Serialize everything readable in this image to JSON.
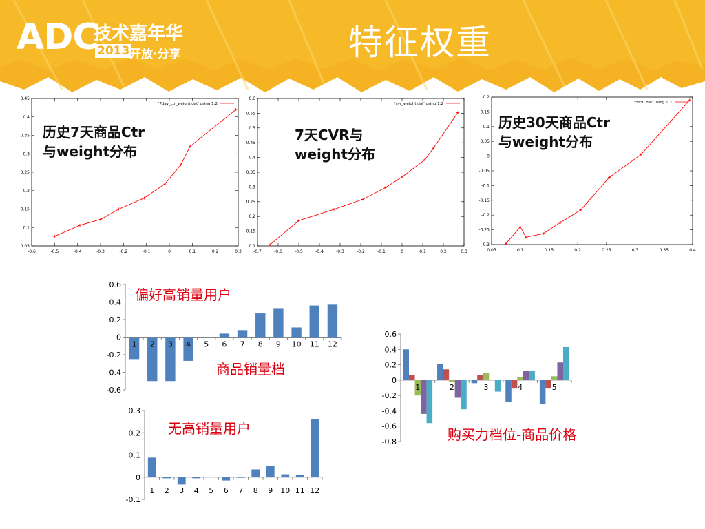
{
  "header": {
    "logo_main": "ADC",
    "logo_sub_top": "技术嘉年华",
    "logo_year": "2013",
    "logo_sub_bottom": "开放·分享",
    "title": "特征权重",
    "colors": {
      "banner": "#f5b324",
      "banner_light": "#f9cb45",
      "title_text": "#ffffff"
    }
  },
  "captions": {
    "plot1": [
      "历史7天商品Ctr",
      "与weight分布"
    ],
    "plot2": [
      "7天CVR与",
      "weight分布"
    ],
    "plot3": [
      "历史30天商品Ctr",
      "与weight分布"
    ],
    "bar1_title": "偏好高销量用户",
    "bar1_axis": "商品销量档",
    "bar2_title": "无高销量用户",
    "bar3_title": "购买力档位-商品价格"
  },
  "chart_data": [
    {
      "type": "line",
      "legend": "'7day_ctr_weight.dat' using 1:2",
      "legend_position": "top-right",
      "xlim": [
        -0.6,
        0.3
      ],
      "ylim": [
        0.05,
        0.45
      ],
      "xticks": [
        "-0.6",
        "-0.5",
        "-0.4",
        "-0.3",
        "-0.2",
        "-0.1",
        "0",
        "0.1",
        "0.2",
        "0.3"
      ],
      "yticks": [
        "0.05",
        "0.1",
        "0.15",
        "0.2",
        "0.25",
        "0.3",
        "0.35",
        "0.4",
        "0.45"
      ],
      "x": [
        -0.5,
        -0.39,
        -0.3,
        -0.22,
        -0.11,
        -0.02,
        0.05,
        0.09,
        0.29
      ],
      "y": [
        0.076,
        0.106,
        0.122,
        0.15,
        0.18,
        0.218,
        0.27,
        0.32,
        0.42
      ],
      "color": "#ff0000"
    },
    {
      "type": "line",
      "legend": "'cvr_weight.dat' using 1:2",
      "legend_position": "top-right",
      "xlim": [
        -0.7,
        0.3
      ],
      "ylim": [
        0.1,
        0.6
      ],
      "xticks": [
        "-0.7",
        "-0.6",
        "-0.5",
        "-0.4",
        "-0.3",
        "-0.2",
        "-0.1",
        "0",
        "0.1",
        "0.2",
        "0.3"
      ],
      "yticks": [
        "0.1",
        "0.15",
        "0.2",
        "0.25",
        "0.3",
        "0.35",
        "0.4",
        "0.45",
        "0.5",
        "0.55",
        "0.6"
      ],
      "x": [
        -0.64,
        -0.5,
        -0.33,
        -0.19,
        -0.08,
        0.0,
        0.11,
        0.15,
        0.27
      ],
      "y": [
        0.104,
        0.186,
        0.224,
        0.258,
        0.298,
        0.334,
        0.392,
        0.43,
        0.552
      ],
      "color": "#ff0000"
    },
    {
      "type": "line",
      "legend": "'ctr30.dat' using 1:2",
      "legend_position": "top-right",
      "xlim": [
        0.05,
        0.4
      ],
      "ylim": [
        -0.3,
        0.2
      ],
      "xticks": [
        "0.05",
        "0.1",
        "0.15",
        "0.2",
        "0.25",
        "0.3",
        "0.35",
        "0.4"
      ],
      "yticks": [
        "-0.3",
        "-0.25",
        "-0.2",
        "-0.15",
        "-0.1",
        "-0.05",
        "0",
        "0.05",
        "0.1",
        "0.15",
        "0.2"
      ],
      "x": [
        0.075,
        0.1,
        0.11,
        0.14,
        0.17,
        0.205,
        0.255,
        0.31,
        0.395
      ],
      "y": [
        -0.297,
        -0.24,
        -0.275,
        -0.263,
        -0.225,
        -0.183,
        -0.072,
        0.005,
        0.19
      ],
      "color": "#ff0000"
    },
    {
      "type": "bar",
      "categories": [
        "1",
        "2",
        "3",
        "4",
        "5",
        "6",
        "7",
        "8",
        "9",
        "10",
        "11",
        "12"
      ],
      "values": [
        -0.25,
        -0.5,
        -0.5,
        -0.27,
        0.0,
        0.04,
        0.08,
        0.27,
        0.33,
        0.11,
        0.36,
        0.37
      ],
      "ylim": [
        -0.6,
        0.6
      ],
      "yticks": [
        "-0.6",
        "-0.4",
        "-0.2",
        "0",
        "0.2",
        "0.4",
        "0.6"
      ],
      "color": "#4f81bd"
    },
    {
      "type": "bar",
      "categories": [
        "1",
        "2",
        "3",
        "4",
        "5",
        "6",
        "7",
        "8",
        "9",
        "10",
        "11",
        "12"
      ],
      "values": [
        0.088,
        -0.005,
        -0.033,
        -0.005,
        0.0,
        -0.015,
        -0.003,
        0.035,
        0.052,
        0.013,
        0.01,
        0.262
      ],
      "ylim": [
        -0.1,
        0.3
      ],
      "yticks": [
        "-0.1",
        "0",
        "0.1",
        "0.2",
        "0.3"
      ],
      "color": "#4f81bd"
    },
    {
      "type": "bar",
      "categories": [
        "1",
        "2",
        "3",
        "4",
        "5"
      ],
      "series": [
        {
          "values": [
            0.4,
            0.21,
            -0.04,
            -0.28,
            -0.31
          ],
          "color": "#4f81bd"
        },
        {
          "values": [
            0.07,
            0.14,
            0.07,
            -0.11,
            -0.11
          ],
          "color": "#c0504d"
        },
        {
          "values": [
            -0.2,
            -0.02,
            0.09,
            0.04,
            0.05
          ],
          "color": "#9bbb59"
        },
        {
          "values": [
            -0.44,
            -0.23,
            0.0,
            0.12,
            0.23
          ],
          "color": "#8064a2"
        },
        {
          "values": [
            -0.56,
            -0.38,
            -0.15,
            0.12,
            0.43
          ],
          "color": "#4bacc6"
        }
      ],
      "ylim": [
        -0.8,
        0.6
      ],
      "yticks": [
        "-0.8",
        "-0.6",
        "-0.4",
        "-0.2",
        "0",
        "0.2",
        "0.4",
        "0.6"
      ]
    }
  ]
}
